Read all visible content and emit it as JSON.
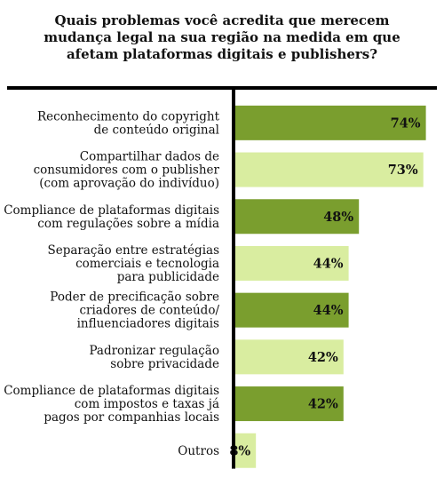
{
  "title_lines": [
    "Quais problemas você acredita que merecem",
    "mudança legal na sua região na medida em que",
    "afetam plataformas digitais e publishers?"
  ],
  "colors": {
    "dark_bar": "#7a9e2e",
    "light_bar": "#d9eda0",
    "axis": "#000000",
    "text": "#111111"
  },
  "chart_data": {
    "type": "bar",
    "orientation": "horizontal",
    "title": "Quais problemas você acredita que merecem mudança legal na sua região na medida em que afetam plataformas digitais e publishers?",
    "categories": [
      [
        "Reconhecimento do copyright",
        "de conteúdo original"
      ],
      [
        "Compartilhar dados de",
        "consumidores com o publisher",
        "(com aprovação do indivíduo)"
      ],
      [
        "Compliance de plataformas digitais",
        "com regulações sobre a mídia"
      ],
      [
        "Separação entre estratégias",
        "comerciais e tecnologia",
        "para publicidade"
      ],
      [
        "Poder de precificação sobre",
        "criadores de conteúdo/",
        "influenciadores digitais"
      ],
      [
        "Padronizar regulação",
        "sobre privacidade"
      ],
      [
        "Compliance de plataformas digitais",
        "com impostos e taxas já",
        "pagos por companhias locais"
      ],
      [
        "Outros"
      ]
    ],
    "values": [
      74,
      73,
      48,
      44,
      44,
      42,
      42,
      8
    ],
    "value_labels": [
      "74%",
      "73%",
      "48%",
      "44%",
      "44%",
      "42%",
      "42%",
      "8%"
    ],
    "bar_shades": [
      "dark",
      "light",
      "dark",
      "light",
      "dark",
      "light",
      "dark",
      "light"
    ],
    "xlim": [
      0,
      100
    ],
    "grid": false,
    "legend": "none"
  }
}
